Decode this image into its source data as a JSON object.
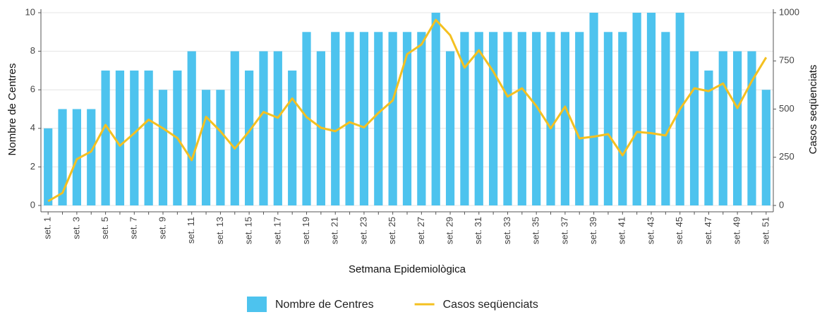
{
  "chart_data": {
    "type": "bar",
    "x_label": "Setmana Epidemiològica",
    "y_label": "Nombre de Centres",
    "y2_label": "Casos seqüenciats",
    "categories": [
      "set. 1",
      null,
      "set. 3",
      null,
      "set. 5",
      null,
      "set. 7",
      null,
      "set. 9",
      null,
      "set. 11",
      null,
      "set. 13",
      null,
      "set. 15",
      null,
      "set. 17",
      null,
      "set. 19",
      null,
      "set. 21",
      null,
      "set. 23",
      null,
      "set. 25",
      null,
      "set. 27",
      null,
      "set. 29",
      null,
      "set. 31",
      null,
      "set. 33",
      null,
      "set. 35",
      null,
      "set. 37",
      null,
      "set. 39",
      null,
      "set. 41",
      null,
      "set. 43",
      null,
      "set. 45",
      null,
      "set. 47",
      null,
      "set. 49",
      null,
      "set. 51"
    ],
    "series": [
      {
        "name": "Nombre de Centres",
        "type": "bar",
        "color": "#4dc3ee",
        "values": [
          4,
          5,
          5,
          5,
          7,
          7,
          7,
          7,
          6,
          7,
          8,
          6,
          6,
          8,
          7,
          8,
          8,
          7,
          9,
          8,
          9,
          9,
          9,
          9,
          9,
          9,
          9,
          10,
          8,
          9,
          9,
          9,
          9,
          9,
          9,
          9,
          9,
          9,
          10,
          9,
          9,
          10,
          10,
          9,
          10,
          8,
          7,
          8,
          8,
          8,
          6
        ]
      },
      {
        "name": "Casos seqüenciats",
        "type": "line",
        "axis": "y2",
        "color": "#f4c020",
        "values": [
          22,
          65,
          240,
          280,
          418,
          310,
          375,
          445,
          400,
          350,
          235,
          460,
          385,
          295,
          385,
          485,
          455,
          555,
          458,
          403,
          385,
          432,
          405,
          480,
          545,
          785,
          835,
          963,
          883,
          715,
          805,
          695,
          565,
          608,
          516,
          400,
          513,
          348,
          357,
          370,
          260,
          382,
          375,
          363,
          500,
          608,
          593,
          633,
          505,
          645,
          768
        ]
      }
    ],
    "ylim": [
      0,
      10
    ],
    "yticks": [
      0,
      2,
      4,
      6,
      8,
      10
    ],
    "y2lim": [
      0,
      1000
    ],
    "y2ticks": [
      0,
      250,
      500,
      750,
      1000
    ],
    "grid": true,
    "legend": "bottom"
  }
}
